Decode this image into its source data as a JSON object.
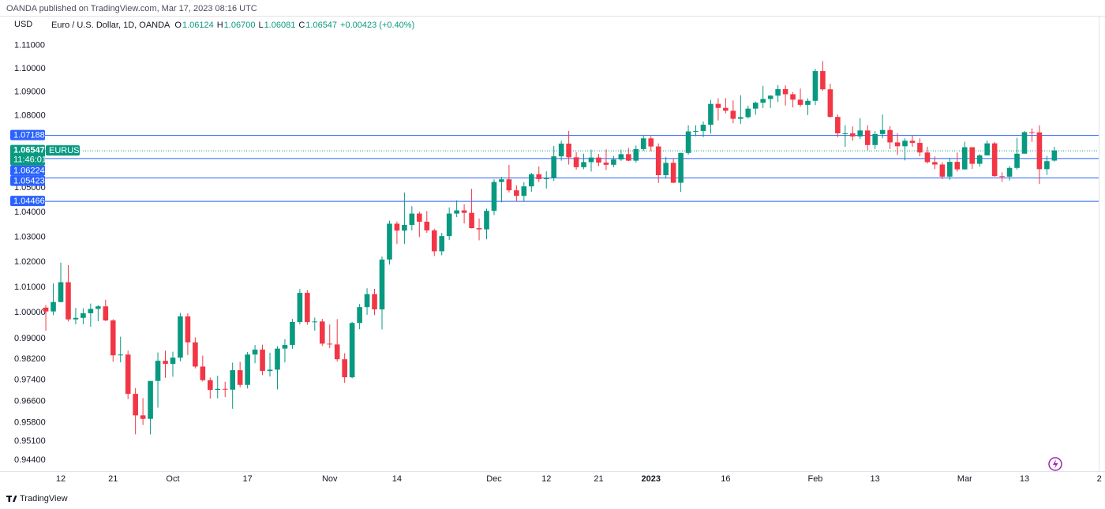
{
  "chart_data": {
    "type": "candlestick",
    "source": "OANDA published on TradingView.com, Mar 17, 2023 08:16 UTC",
    "currency": "USD",
    "legend": {
      "title": "Euro / U.S. Dollar, 1D, OANDA",
      "fields": [
        {
          "key": "O",
          "value": "1.06124"
        },
        {
          "key": "H",
          "value": "1.06700"
        },
        {
          "key": "L",
          "value": "1.06081"
        },
        {
          "key": "C",
          "value": "1.06547"
        }
      ],
      "change": "+0.00423 (+0.40%)"
    },
    "symbol": "EURUSD",
    "last_price": 1.06547,
    "countdown": "11:46:01",
    "levels": [
      1.07188,
      1.06224,
      1.05423,
      1.04466
    ],
    "level_color": "#2962ff",
    "up_color": "#089981",
    "down_color": "#f23645",
    "log": true,
    "ylim": [
      0.94,
      1.123
    ],
    "yticks": [
      {
        "value": 1.11,
        "label": "1.11000"
      },
      {
        "value": 1.1,
        "label": "1.10000"
      },
      {
        "value": 1.09,
        "label": "1.09000"
      },
      {
        "value": 1.08,
        "label": "1.08000"
      },
      {
        "value": 1.05,
        "label": "1.05000"
      },
      {
        "value": 1.04,
        "label": "1.04000"
      },
      {
        "value": 1.03,
        "label": "1.03000"
      },
      {
        "value": 1.02,
        "label": "1.02000"
      },
      {
        "value": 1.01,
        "label": "1.01000"
      },
      {
        "value": 1.0,
        "label": "1.00000"
      },
      {
        "value": 0.99,
        "label": "0.99000"
      },
      {
        "value": 0.982,
        "label": "0.98200"
      },
      {
        "value": 0.974,
        "label": "0.97400"
      },
      {
        "value": 0.966,
        "label": "0.96600"
      },
      {
        "value": 0.958,
        "label": "0.95800"
      },
      {
        "value": 0.951,
        "label": "0.95100"
      },
      {
        "value": 0.944,
        "label": "0.94400"
      }
    ],
    "categories": [
      null,
      null,
      "12",
      null,
      null,
      null,
      null,
      null,
      null,
      "21",
      null,
      null,
      null,
      null,
      null,
      null,
      null,
      "Oct",
      null,
      null,
      null,
      null,
      null,
      null,
      null,
      null,
      null,
      "17",
      null,
      null,
      null,
      null,
      null,
      null,
      null,
      null,
      null,
      null,
      "Nov",
      null,
      null,
      null,
      null,
      null,
      null,
      null,
      null,
      "14",
      null,
      null,
      null,
      null,
      null,
      null,
      null,
      null,
      null,
      null,
      null,
      null,
      "Dec",
      null,
      null,
      null,
      null,
      null,
      null,
      "12",
      null,
      null,
      null,
      null,
      null,
      null,
      "21",
      null,
      null,
      null,
      null,
      null,
      null,
      "2023",
      null,
      null,
      null,
      null,
      null,
      null,
      null,
      null,
      null,
      "16",
      null,
      null,
      null,
      null,
      null,
      null,
      null,
      null,
      null,
      null,
      null,
      "Feb",
      null,
      null,
      null,
      null,
      null,
      null,
      null,
      "13",
      null,
      null,
      null,
      null,
      null,
      null,
      null,
      null,
      null,
      null,
      null,
      "Mar",
      null,
      null,
      null,
      null,
      null,
      null,
      null,
      "13",
      null,
      null,
      null,
      null,
      null,
      null,
      null,
      null,
      null,
      "2"
    ],
    "open": [
      1.002,
      1.0005,
      1.0042,
      1.012,
      0.9974,
      0.998,
      0.9998,
      1.0015,
      1.0025,
      0.997,
      0.9835,
      0.9838,
      0.9688,
      0.9607,
      0.9594,
      0.9737,
      0.9814,
      0.9802,
      0.9826,
      0.9986,
      0.9885,
      0.9792,
      0.974,
      0.9703,
      0.9707,
      0.9704,
      0.9778,
      0.9722,
      0.9838,
      0.9857,
      0.9775,
      0.978,
      0.9861,
      0.9875,
      0.9964,
      1.0078,
      0.9964,
      0.9966,
      0.988,
      0.9877,
      0.982,
      0.9751,
      0.996,
      1.0022,
      1.0073,
      1.0013,
      1.021,
      1.0354,
      1.0326,
      1.0349,
      1.0395,
      1.0362,
      1.0327,
      1.0243,
      1.0304,
      1.0395,
      1.0408,
      1.0398,
      1.0336,
      1.0331,
      1.0406,
      1.0524,
      1.0535,
      1.049,
      1.0467,
      1.0506,
      1.0556,
      1.0536,
      1.054,
      1.063,
      1.0683,
      1.0626,
      1.0585,
      1.0606,
      1.0625,
      1.0604,
      1.0595,
      1.0617,
      1.0639,
      1.0612,
      1.066,
      1.0705,
      1.0671,
      1.0552,
      1.0603,
      1.0521,
      1.0644,
      1.0734,
      1.0736,
      1.0762,
      1.085,
      1.0833,
      1.0821,
      1.0787,
      1.0794,
      1.083,
      1.0855,
      1.0871,
      1.0885,
      1.0913,
      1.0891,
      1.0868,
      1.0846,
      1.0863,
      1.099,
      1.0912,
      1.0795,
      1.0726,
      1.0726,
      1.0713,
      1.0738,
      1.0677,
      1.0723,
      1.074,
      1.0688,
      1.0672,
      1.0695,
      1.0686,
      1.0646,
      1.0606,
      1.0596,
      1.0546,
      1.0607,
      1.0576,
      1.0668,
      1.0599,
      1.0634,
      1.0684,
      1.0548,
      1.0546,
      1.0582,
      1.0641,
      1.0731,
      1.073,
      1.0577,
      1.06124,
      null,
      null,
      null,
      null,
      null,
      null
    ],
    "high": [
      1.003,
      1.0115,
      1.0198,
      1.0188,
      1.0019,
      1.0017,
      1.0036,
      1.003,
      1.0051,
      0.9975,
      0.9907,
      0.9853,
      0.971,
      0.9672,
      0.9737,
      0.9846,
      0.9853,
      0.9849,
      0.9999,
      0.9998,
      0.9904,
      0.9834,
      0.975,
      0.9757,
      0.9734,
      0.9807,
      0.981,
      0.9848,
      0.9875,
      0.9876,
      0.9845,
      0.987,
      0.9897,
      0.9976,
      1.0093,
      1.0089,
      0.9981,
      0.9976,
      0.9954,
      0.9975,
      0.9843,
      0.9964,
      1.0034,
      1.0096,
      1.0094,
      1.0222,
      1.0366,
      1.0363,
      1.0481,
      1.0425,
      1.0403,
      1.0405,
      1.0334,
      1.0317,
      1.042,
      1.0449,
      1.0433,
      1.0496,
      1.0375,
      1.0415,
      1.0535,
      1.0545,
      1.0595,
      1.051,
      1.0523,
      1.0562,
      1.0588,
      1.0568,
      1.0673,
      1.0695,
      1.0736,
      1.0648,
      1.0641,
      1.0658,
      1.064,
      1.0659,
      1.0632,
      1.0658,
      1.0665,
      1.0675,
      1.0715,
      1.0714,
      1.0684,
      1.0628,
      1.0622,
      1.0645,
      1.076,
      1.076,
      1.0776,
      1.0867,
      1.0874,
      1.0874,
      1.0865,
      1.0887,
      1.0843,
      1.086,
      1.0927,
      1.0887,
      1.093,
      1.0929,
      1.09,
      1.0915,
      1.0874,
      1.1,
      1.1033,
      1.0936,
      1.0805,
      1.076,
      1.0755,
      1.079,
      1.076,
      1.0735,
      1.0805,
      1.0756,
      1.0726,
      1.0705,
      1.0717,
      1.0705,
      1.067,
      1.063,
      1.0605,
      1.0624,
      1.0646,
      1.0691,
      1.0668,
      1.064,
      1.0695,
      1.069,
      1.0564,
      1.059,
      1.0707,
      1.0736,
      1.0747,
      1.076,
      1.0632,
      1.067,
      null,
      null,
      null,
      null,
      null,
      null
    ],
    "low": [
      0.993,
      0.999,
      1.004,
      0.9966,
      0.9955,
      0.9955,
      0.9945,
      0.9967,
      0.9967,
      0.981,
      0.9808,
      0.9668,
      0.9536,
      0.9571,
      0.9536,
      0.9636,
      0.9749,
      0.9753,
      0.9812,
      0.9836,
      0.9785,
      0.9735,
      0.967,
      0.9671,
      0.9676,
      0.9632,
      0.9713,
      0.9708,
      0.9805,
      0.9759,
      0.9754,
      0.9705,
      0.9808,
      0.986,
      0.9954,
      0.9953,
      0.993,
      0.9871,
      0.9863,
      0.9811,
      0.973,
      0.9747,
      0.9936,
      0.9992,
      0.9991,
      0.9935,
      1.019,
      1.0272,
      1.0273,
      1.0327,
      1.03,
      1.0317,
      1.0224,
      1.0227,
      1.0288,
      1.0381,
      1.0355,
      1.0335,
      1.0287,
      1.0291,
      1.0389,
      1.0441,
      1.0481,
      1.0444,
      1.0443,
      1.0484,
      1.0524,
      1.0497,
      1.0528,
      1.0612,
      1.0596,
      1.0575,
      1.0577,
      1.0567,
      1.059,
      1.0573,
      1.0585,
      1.0611,
      1.061,
      1.0604,
      1.0653,
      1.0651,
      1.052,
      1.0538,
      1.052,
      1.0483,
      1.0637,
      1.0714,
      1.071,
      1.0725,
      1.078,
      1.081,
      1.0768,
      1.0766,
      1.0788,
      1.0804,
      1.0832,
      1.0833,
      1.0858,
      1.0843,
      1.0835,
      1.0838,
      1.0803,
      1.0845,
      1.0906,
      1.0793,
      1.071,
      1.0669,
      1.0695,
      1.0702,
      1.0655,
      1.066,
      1.0705,
      1.066,
      1.0635,
      1.0613,
      1.067,
      1.063,
      1.06,
      1.0577,
      1.0536,
      1.0533,
      1.0567,
      1.0575,
      1.0578,
      1.0587,
      1.0634,
      1.0546,
      1.0524,
      1.053,
      1.0575,
      1.0643,
      1.069,
      1.0516,
      1.0553,
      1.06081,
      null,
      null,
      null,
      null,
      null,
      null
    ],
    "close": [
      1.0005,
      1.0042,
      1.012,
      0.9974,
      0.998,
      0.9998,
      1.0015,
      1.0025,
      0.997,
      0.9835,
      0.9838,
      0.9688,
      0.9607,
      0.9594,
      0.9737,
      0.9814,
      0.9802,
      0.9826,
      0.9986,
      0.9885,
      0.9792,
      0.974,
      0.9703,
      0.9707,
      0.9704,
      0.9778,
      0.9722,
      0.9838,
      0.9857,
      0.9775,
      0.978,
      0.9861,
      0.9875,
      0.9964,
      1.0078,
      0.9964,
      0.9966,
      0.988,
      0.9877,
      0.982,
      0.9751,
      0.996,
      1.0022,
      1.0073,
      1.0013,
      1.021,
      1.0354,
      1.0326,
      1.0349,
      1.0395,
      1.0362,
      1.0327,
      1.0243,
      1.0304,
      1.0395,
      1.0408,
      1.0398,
      1.0336,
      1.0331,
      1.0406,
      1.0524,
      1.0535,
      1.049,
      1.0467,
      1.0506,
      1.0556,
      1.0536,
      1.054,
      1.063,
      1.0683,
      1.0626,
      1.0585,
      1.0606,
      1.0625,
      1.0604,
      1.0595,
      1.0617,
      1.0639,
      1.0612,
      1.066,
      1.0705,
      1.0671,
      1.0552,
      1.0603,
      1.0521,
      1.0644,
      1.0734,
      1.0736,
      1.0762,
      1.085,
      1.0833,
      1.0821,
      1.0787,
      1.0794,
      1.083,
      1.0855,
      1.0871,
      1.0885,
      1.0913,
      1.0891,
      1.0868,
      1.0846,
      1.0863,
      1.099,
      1.0912,
      1.0795,
      1.0726,
      1.0726,
      1.0713,
      1.0738,
      1.0677,
      1.0723,
      1.074,
      1.0688,
      1.0672,
      1.0695,
      1.0686,
      1.0646,
      1.0606,
      1.0596,
      1.0546,
      1.0607,
      1.0576,
      1.0668,
      1.0599,
      1.0634,
      1.0684,
      1.0548,
      1.0546,
      1.0582,
      1.0641,
      1.0731,
      1.073,
      1.0577,
      1.061,
      1.06547,
      null,
      null,
      null,
      null,
      null,
      null
    ],
    "brand": "TradingView"
  }
}
